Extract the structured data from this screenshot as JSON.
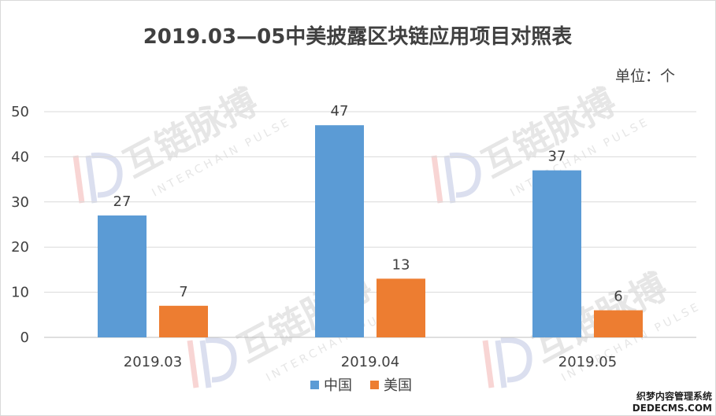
{
  "chart_data": {
    "type": "bar",
    "title": "2019.03—05中美披露区块链应用项目对照表",
    "unit_label": "单位：个",
    "categories": [
      "2019.03",
      "2019.04",
      "2019.05"
    ],
    "series": [
      {
        "name": "中国",
        "values": [
          27,
          47,
          37
        ],
        "color": "#5b9bd5"
      },
      {
        "name": "美国",
        "values": [
          7,
          13,
          6
        ],
        "color": "#ed7d31"
      }
    ],
    "ylim": [
      0,
      50
    ],
    "yticks": [
      0,
      10,
      20,
      30,
      40,
      50
    ],
    "grid": true,
    "legend_position": "bottom"
  },
  "watermark": {
    "text": "互链脉搏",
    "subtext": "INTERCHAIN PULSE"
  },
  "site_mark": {
    "line1": "织梦内容管理系统",
    "line2": "DEDECMS.COM"
  }
}
